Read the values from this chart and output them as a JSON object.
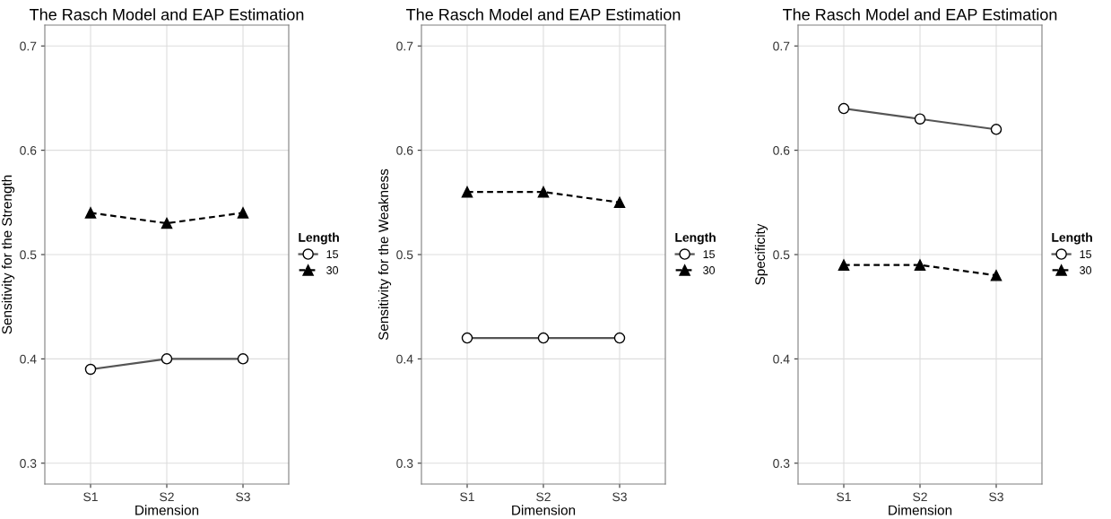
{
  "chart_data": [
    {
      "type": "line",
      "title": "The Rasch Model and EAP Estimation",
      "xlabel": "Dimension",
      "ylabel": "Sensitivity for the Strength",
      "categories": [
        "S1",
        "S2",
        "S3"
      ],
      "ylim": [
        0.28,
        0.72
      ],
      "yticks": [
        0.3,
        0.4,
        0.5,
        0.6,
        0.7
      ],
      "grid": true,
      "legend": "right",
      "legend_title": "Length",
      "series": [
        {
          "name": "15",
          "color": "#555555",
          "marker": "circle",
          "line_style": "solid",
          "values": [
            0.39,
            0.4,
            0.4
          ]
        },
        {
          "name": "30",
          "color": "#000000",
          "marker": "triangle",
          "line_style": "dashed",
          "values": [
            0.54,
            0.53,
            0.54
          ]
        }
      ]
    },
    {
      "type": "line",
      "title": "The Rasch Model and EAP Estimation",
      "xlabel": "Dimension",
      "ylabel": "Sensitivity for the Weakness",
      "categories": [
        "S1",
        "S2",
        "S3"
      ],
      "ylim": [
        0.28,
        0.72
      ],
      "yticks": [
        0.3,
        0.4,
        0.5,
        0.6,
        0.7
      ],
      "grid": true,
      "legend": "right",
      "legend_title": "Length",
      "series": [
        {
          "name": "15",
          "color": "#555555",
          "marker": "circle",
          "line_style": "solid",
          "values": [
            0.42,
            0.42,
            0.42
          ]
        },
        {
          "name": "30",
          "color": "#000000",
          "marker": "triangle",
          "line_style": "dashed",
          "values": [
            0.56,
            0.56,
            0.55
          ]
        }
      ]
    },
    {
      "type": "line",
      "title": "The Rasch Model and EAP Estimation",
      "xlabel": "Dimension",
      "ylabel": "Specificity",
      "categories": [
        "S1",
        "S2",
        "S3"
      ],
      "ylim": [
        0.28,
        0.72
      ],
      "yticks": [
        0.3,
        0.4,
        0.5,
        0.6,
        0.7
      ],
      "grid": true,
      "legend": "right",
      "legend_title": "Length",
      "series": [
        {
          "name": "15",
          "color": "#555555",
          "marker": "circle",
          "line_style": "solid",
          "values": [
            0.64,
            0.63,
            0.62
          ]
        },
        {
          "name": "30",
          "color": "#000000",
          "marker": "triangle",
          "line_style": "dashed",
          "values": [
            0.49,
            0.49,
            0.48
          ]
        }
      ]
    }
  ]
}
